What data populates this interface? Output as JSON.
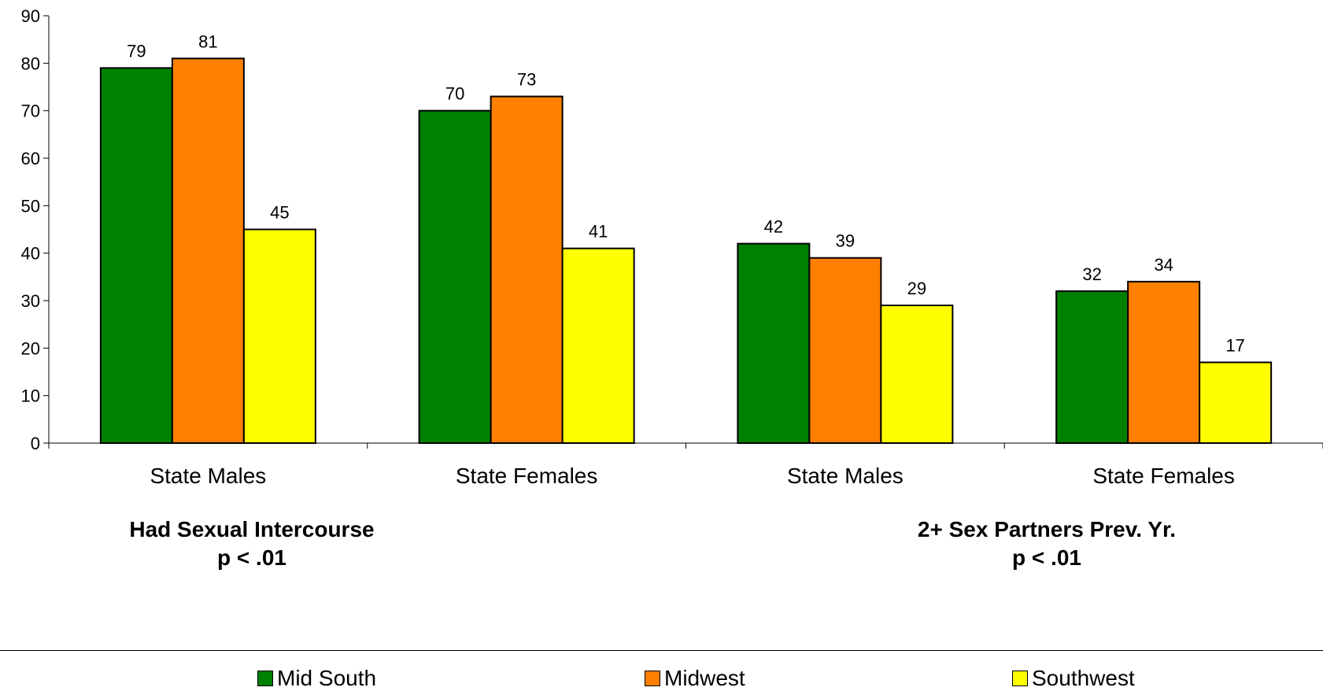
{
  "chart_data": {
    "type": "bar",
    "categories": [
      "State Males",
      "State Females",
      "State Males",
      "State Females"
    ],
    "group_captions": [
      {
        "line1": "Had Sexual Intercourse",
        "line2": "p < .01"
      },
      {
        "line1": "2+ Sex Partners Prev. Yr.",
        "line2": "p < .01"
      }
    ],
    "series": [
      {
        "name": "Mid South",
        "color": "#008000",
        "values": [
          79,
          70,
          42,
          32
        ]
      },
      {
        "name": "Midwest",
        "color": "#FF7F00",
        "values": [
          81,
          73,
          39,
          34
        ]
      },
      {
        "name": "Southwest",
        "color": "#FFFF00",
        "values": [
          45,
          41,
          29,
          17
        ]
      }
    ],
    "ylim": [
      0,
      90
    ],
    "yticks": [
      "0",
      "10",
      "20",
      "30",
      "40",
      "50",
      "60",
      "70",
      "80",
      "90"
    ],
    "data_labels": true,
    "legend_position": "bottom",
    "grid": false
  }
}
